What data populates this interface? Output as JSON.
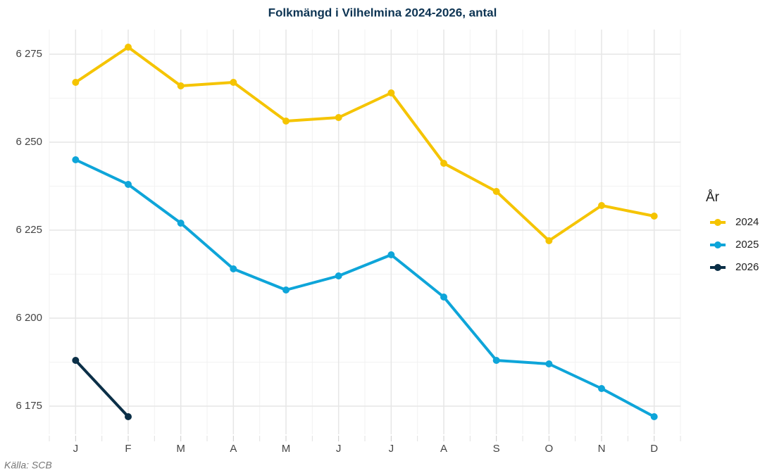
{
  "chart_data": {
    "type": "line",
    "title": "Folkmängd i Vilhelmina 2024-2026, antal",
    "caption": "Källa: SCB",
    "legend_title": "År",
    "legend_position": "right",
    "grid": true,
    "categories": [
      "J",
      "F",
      "M",
      "A",
      "M",
      "J",
      "J",
      "A",
      "S",
      "O",
      "N",
      "D"
    ],
    "series": [
      {
        "name": "2024",
        "color": "#f5c400",
        "values": [
          6267,
          6277,
          6266,
          6267,
          6256,
          6257,
          6264,
          6244,
          6236,
          6222,
          6232,
          6229
        ]
      },
      {
        "name": "2025",
        "color": "#0ea5d9",
        "values": [
          6245,
          6238,
          6227,
          6214,
          6208,
          6212,
          6218,
          6206,
          6188,
          6187,
          6180,
          6172
        ]
      },
      {
        "name": "2026",
        "color": "#0b2f47",
        "values": [
          6188,
          6172,
          null,
          null,
          null,
          null,
          null,
          null,
          null,
          null,
          null,
          null
        ]
      }
    ],
    "ylim": [
      6167,
      6282
    ],
    "yticks": [
      {
        "value": 6175,
        "label": "6 175"
      },
      {
        "value": 6200,
        "label": "6 200"
      },
      {
        "value": 6225,
        "label": "6 225"
      },
      {
        "value": 6250,
        "label": "6 250"
      },
      {
        "value": 6275,
        "label": "6 275"
      }
    ]
  }
}
